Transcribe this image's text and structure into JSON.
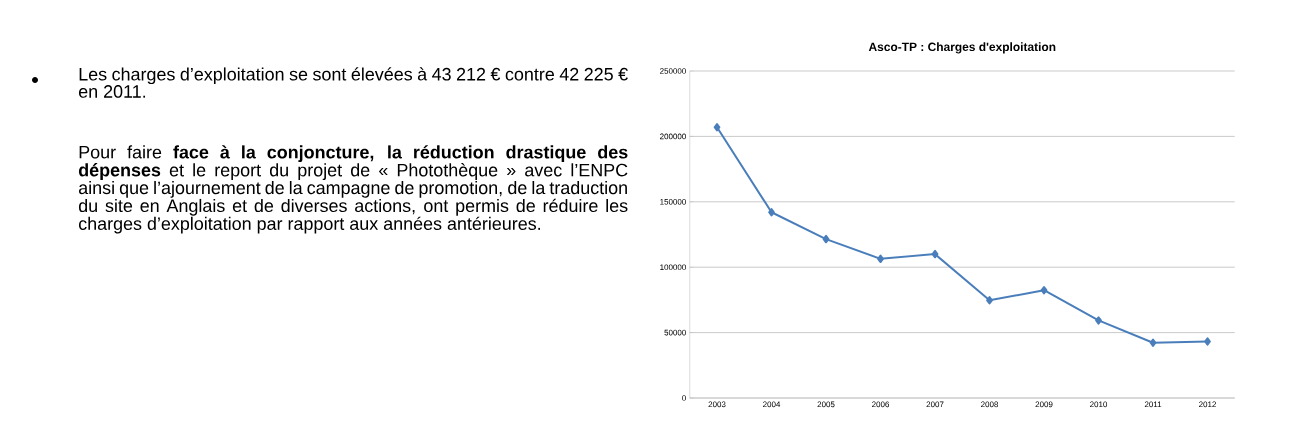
{
  "chart_data": {
    "type": "line",
    "title": "Asco-TP : Charges d'exploitation",
    "categories": [
      "2003",
      "2004",
      "2005",
      "2006",
      "2007",
      "2008",
      "2009",
      "2010",
      "2011",
      "2012"
    ],
    "series": [
      {
        "color": "#4a7ebb",
        "values": [
          207000,
          142000,
          121500,
          106400,
          110000,
          74700,
          82400,
          59300,
          42225,
          43212
        ]
      }
    ],
    "ylim": [
      0,
      250000
    ],
    "yticks": [
      0,
      50000,
      100000,
      150000,
      200000,
      250000
    ],
    "grid": "y",
    "marker": "diamond",
    "line_style": "solid",
    "annotations": [
      "Les charges d’exploitation se sont élevées à 43 212 € contre 42 225 € en 2011.",
      "Pour faire **face à la conjoncture, la réduction drastique des dépenses** et le report du projet de « Photothèque » avec l’ENPC ainsi que l’ajournement de la campagne de promotion, de la traduction du site en Anglais et de diverses actions, ont permis de réduire les charges d’exploitation par rapport aux années antérieures."
    ]
  }
}
